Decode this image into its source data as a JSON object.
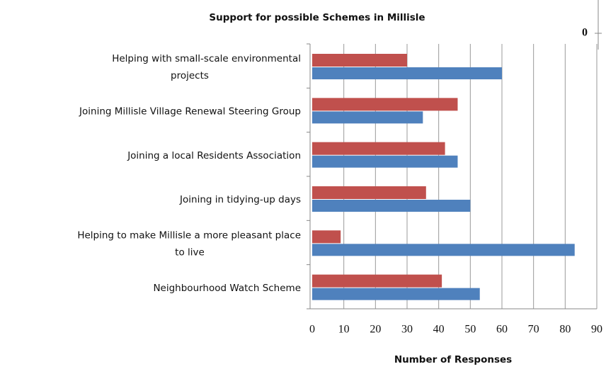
{
  "chart_data": {
    "type": "hbar",
    "title": "Support for possible Schemes in Millisle",
    "xlabel": "Number of Responses",
    "categories": [
      "Helping with small-scale environmental\nprojects",
      "Joining Millisle Village Renewal Steering Group",
      "Joining a local Residents Association",
      "Joining in tidying-up days",
      "Helping to make Millisle a more pleasant place\nto live",
      "Neighbourhood Watch Scheme"
    ],
    "series": [
      {
        "color": "#c0504d",
        "values": [
          30,
          46,
          42,
          36,
          9,
          41
        ]
      },
      {
        "color": "#4f81bd",
        "values": [
          60,
          35,
          46,
          50,
          83,
          53
        ]
      }
    ],
    "xlim": [
      0,
      90
    ],
    "xticks": [
      0,
      10,
      20,
      30,
      40,
      50,
      60,
      70,
      80,
      90
    ],
    "grid": true
  },
  "cropped_chart": {
    "ytick_label": "0"
  }
}
